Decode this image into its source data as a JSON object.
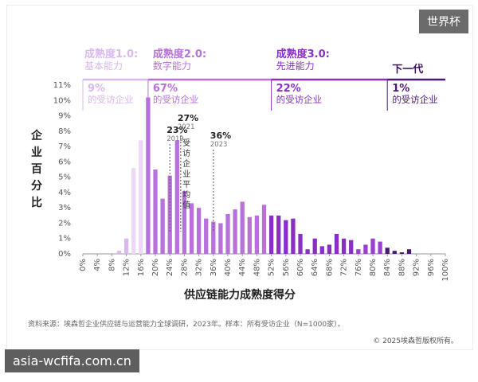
{
  "watermarks": {
    "top_right": "世界杯",
    "bottom_left": "asia-wcfifa.com.cn"
  },
  "chart_data": {
    "type": "bar",
    "xlabel": "供应链能力成熟度得分",
    "ylabel": "企业百分比",
    "ylim": [
      0,
      11
    ],
    "yticks": [
      "0%",
      "1%",
      "2%",
      "3%",
      "4%",
      "5%",
      "6%",
      "7%",
      "8%",
      "9%",
      "10%",
      "11%"
    ],
    "xticks": [
      "0%",
      "4%",
      "8%",
      "12%",
      "16%",
      "20%",
      "24%",
      "28%",
      "32%",
      "36%",
      "40%",
      "44%",
      "48%",
      "52%",
      "56%",
      "60%",
      "64%",
      "68%",
      "72%",
      "76%",
      "80%",
      "84%",
      "88%",
      "92%",
      "96%",
      "100%"
    ],
    "bars": [
      {
        "x": 10,
        "value": 0.2
      },
      {
        "x": 12,
        "value": 1.0
      },
      {
        "x": 14,
        "value": 5.6
      },
      {
        "x": 16,
        "value": 7.4
      },
      {
        "x": 18,
        "value": 10.2
      },
      {
        "x": 20,
        "value": 5.5
      },
      {
        "x": 22,
        "value": 3.6
      },
      {
        "x": 24,
        "value": 5.1
      },
      {
        "x": 26,
        "value": 7.4
      },
      {
        "x": 28,
        "value": 4.1
      },
      {
        "x": 30,
        "value": 3.3
      },
      {
        "x": 32,
        "value": 3.0
      },
      {
        "x": 34,
        "value": 2.3
      },
      {
        "x": 36,
        "value": 2.1
      },
      {
        "x": 38,
        "value": 2.0
      },
      {
        "x": 40,
        "value": 2.6
      },
      {
        "x": 42,
        "value": 2.9
      },
      {
        "x": 44,
        "value": 3.4
      },
      {
        "x": 46,
        "value": 2.4
      },
      {
        "x": 48,
        "value": 2.5
      },
      {
        "x": 50,
        "value": 3.2
      },
      {
        "x": 52,
        "value": 2.5
      },
      {
        "x": 54,
        "value": 2.5
      },
      {
        "x": 56,
        "value": 2.2
      },
      {
        "x": 58,
        "value": 2.3
      },
      {
        "x": 60,
        "value": 1.3
      },
      {
        "x": 62,
        "value": 0.3
      },
      {
        "x": 64,
        "value": 1.0
      },
      {
        "x": 66,
        "value": 0.5
      },
      {
        "x": 68,
        "value": 0.6
      },
      {
        "x": 70,
        "value": 1.3
      },
      {
        "x": 72,
        "value": 1.0
      },
      {
        "x": 74,
        "value": 0.9
      },
      {
        "x": 76,
        "value": 0.3
      },
      {
        "x": 78,
        "value": 0.6
      },
      {
        "x": 80,
        "value": 1.0
      },
      {
        "x": 82,
        "value": 0.8
      },
      {
        "x": 84,
        "value": 0.4
      },
      {
        "x": 86,
        "value": 0.2
      },
      {
        "x": 88,
        "value": 0.1
      },
      {
        "x": 90,
        "value": 0.3
      }
    ],
    "stages": [
      {
        "title": "成熟度1.0:",
        "sub": "基本能力",
        "pct": "9%",
        "desc": "的受访企业",
        "range": [
          0,
          18
        ],
        "color": "#d9b8ee"
      },
      {
        "title": "成熟度2.0:",
        "sub": "数字能力",
        "pct": "67%",
        "desc": "的受访企业",
        "range": [
          18,
          52
        ],
        "color": "#b770dc"
      },
      {
        "title": "成熟度3.0:",
        "sub": "先进能力",
        "pct": "22%",
        "desc": "的受访企业",
        "range": [
          52,
          84
        ],
        "color": "#8a2fc6"
      },
      {
        "title": "",
        "sub": "下一代",
        "pct": "1%",
        "desc": "的受访企业",
        "range": [
          84,
          100
        ],
        "color": "#4b1a78"
      }
    ],
    "annotations": [
      {
        "value": "23%",
        "year": "2019",
        "x": 24
      },
      {
        "value": "27%",
        "year": "2021",
        "x": 27
      },
      {
        "value": "36%",
        "year": "2023",
        "x": 36
      }
    ],
    "avg_label": [
      "受",
      "访",
      "企",
      "业",
      "平",
      "均",
      "值"
    ],
    "source": "资料来源：埃森哲企业供应链与运营能力全球调研，2023年。样本：所有受访企业（N=1000家）。",
    "copyright": "© 2025埃森哲版权所有。"
  }
}
